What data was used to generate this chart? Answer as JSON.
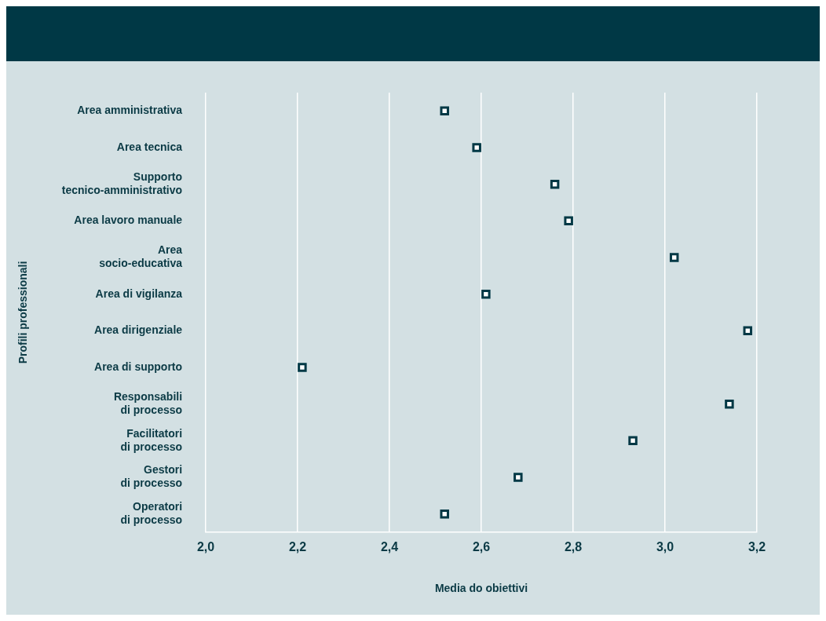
{
  "chart_data": {
    "type": "scatter",
    "xlabel": "Media do obiettivi",
    "ylabel": "Profili professionali",
    "categories": [
      "Area amministrativa",
      "Area tecnica",
      "Supporto\ntecnico-amministrativo",
      "Area lavoro manuale",
      "Area\nsocio-educativa",
      "Area di vigilanza",
      "Area dirigenziale",
      "Area di supporto",
      "Responsabili\ndi processo",
      "Facilitatori\ndi processo",
      "Gestori\ndi processo",
      "Operatori\ndi processo"
    ],
    "values": [
      2.52,
      2.59,
      2.76,
      2.79,
      3.02,
      2.61,
      3.18,
      2.21,
      3.14,
      2.93,
      2.68,
      2.52
    ],
    "color": "#003845",
    "marker": "square",
    "orientation": "horizontal",
    "grid": "x",
    "legend": false,
    "xlim": [
      2.0,
      3.2
    ],
    "xticks": [
      {
        "value": 2.0,
        "label": "2,0"
      },
      {
        "value": 2.2,
        "label": "2,2"
      },
      {
        "value": 2.4,
        "label": "2,4"
      },
      {
        "value": 2.6,
        "label": "2,6"
      },
      {
        "value": 2.8,
        "label": "2,8"
      },
      {
        "value": 3.0,
        "label": "3,0"
      },
      {
        "value": 3.2,
        "label": "3,2"
      }
    ]
  }
}
